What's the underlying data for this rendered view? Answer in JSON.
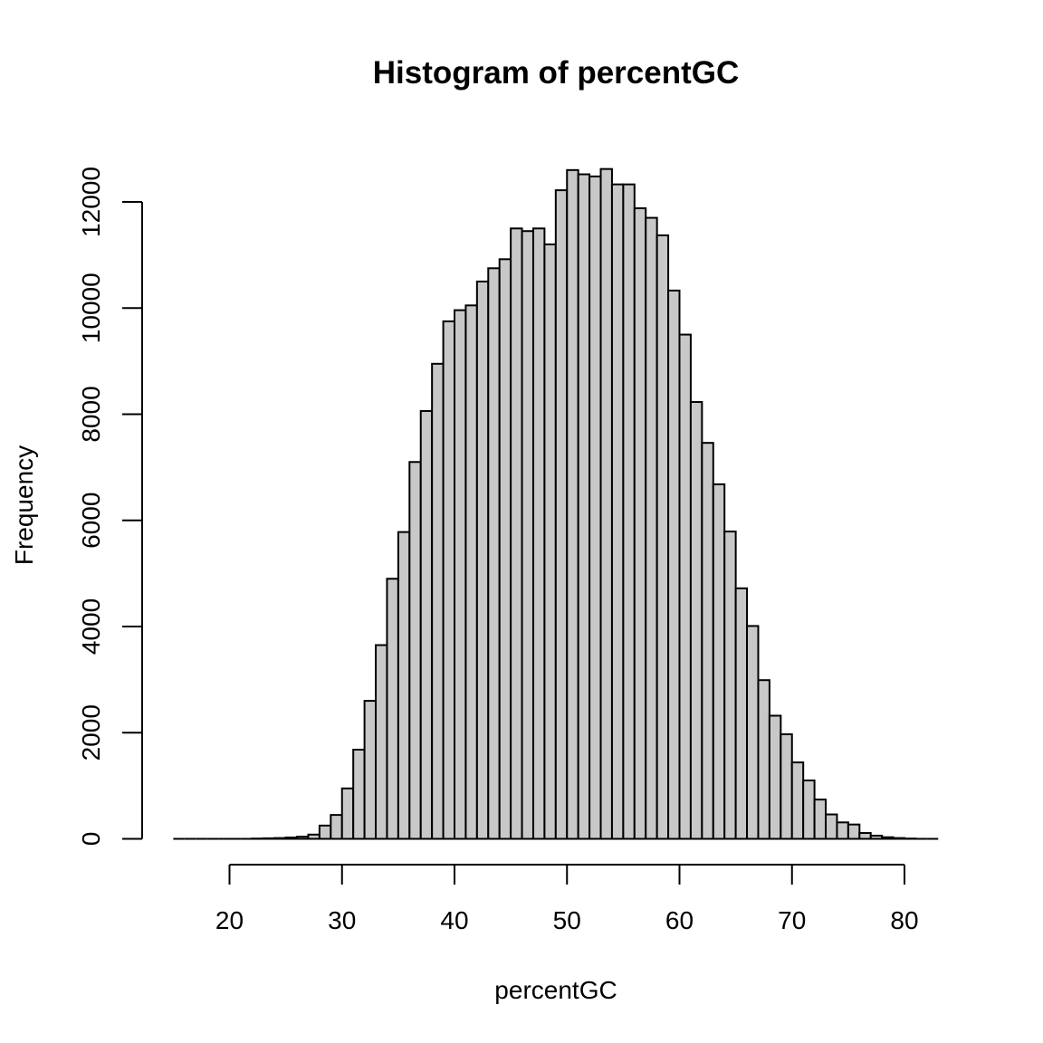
{
  "chart_data": {
    "type": "bar",
    "title": "Histogram of percentGC",
    "xlabel": "percentGC",
    "ylabel": "Frequency",
    "xlim": [
      15,
      83
    ],
    "ylim": [
      0,
      12000
    ],
    "bin_width": 1,
    "x_ticks": [
      20,
      30,
      40,
      50,
      60,
      70,
      80
    ],
    "y_ticks": [
      0,
      2000,
      4000,
      6000,
      8000,
      10000,
      12000
    ],
    "bin_starts": [
      15,
      16,
      17,
      18,
      19,
      20,
      21,
      22,
      23,
      24,
      25,
      26,
      27,
      28,
      29,
      30,
      31,
      32,
      33,
      34,
      35,
      36,
      37,
      38,
      39,
      40,
      41,
      42,
      43,
      44,
      45,
      46,
      47,
      48,
      49,
      50,
      51,
      52,
      53,
      54,
      55,
      56,
      57,
      58,
      59,
      60,
      61,
      62,
      63,
      64,
      65,
      66,
      67,
      68,
      69,
      70,
      71,
      72,
      73,
      74,
      75,
      76,
      77,
      78,
      79,
      80,
      81,
      82
    ],
    "values": [
      0,
      0,
      0,
      0,
      0,
      0,
      0,
      5,
      10,
      15,
      25,
      40,
      80,
      250,
      450,
      950,
      1680,
      2600,
      3650,
      4900,
      5780,
      7100,
      8060,
      8950,
      9750,
      9960,
      10050,
      10500,
      10750,
      10920,
      11500,
      11450,
      11500,
      11200,
      12220,
      12600,
      12520,
      12480,
      12620,
      12330,
      12330,
      11880,
      11700,
      11370,
      10330,
      9500,
      8230,
      7460,
      6680,
      5790,
      4720,
      4010,
      2990,
      2320,
      1970,
      1440,
      1100,
      740,
      460,
      310,
      270,
      110,
      60,
      30,
      15,
      5,
      0,
      0
    ],
    "grid": false,
    "bar_fill": "#c8c8c8",
    "bar_stroke": "#000000"
  }
}
